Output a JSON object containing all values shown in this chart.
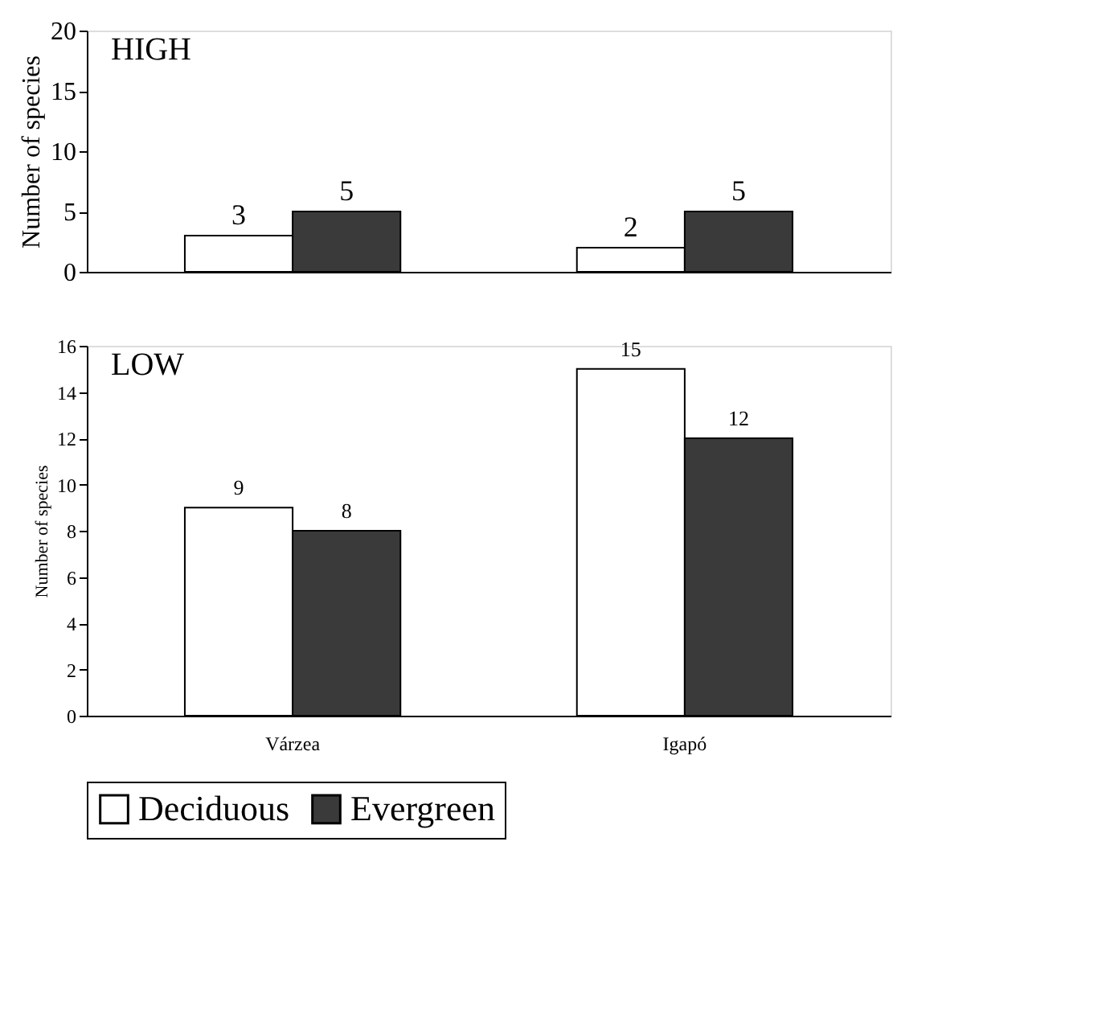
{
  "chart_data": [
    {
      "type": "bar",
      "categories": [
        null,
        null
      ],
      "ylabel": "Number of species",
      "annotations": [
        "HIGH"
      ],
      "ylim": [
        0,
        20
      ],
      "yticks": [
        0,
        5,
        10,
        15,
        20
      ],
      "tick_labels": "y",
      "data_labels": true,
      "grid": false,
      "series": [
        {
          "color": "#ffffff",
          "values": [
            3,
            2
          ]
        },
        {
          "color": "#3a3a3a",
          "values": [
            5,
            5
          ]
        }
      ]
    },
    {
      "type": "bar",
      "categories": [
        "Várzea",
        "Igapó"
      ],
      "ylabel": "Number of species",
      "annotations": [
        "LOW"
      ],
      "ylim": [
        0,
        16
      ],
      "yticks": [
        0,
        2,
        4,
        6,
        8,
        10,
        12,
        14,
        16
      ],
      "data_labels": true,
      "grid": false,
      "legend": "bottom",
      "series": [
        {
          "name": "Deciduous",
          "color": "#ffffff",
          "values": [
            9,
            15
          ]
        },
        {
          "name": "Evergreen",
          "color": "#3a3a3a",
          "values": [
            8,
            12
          ]
        }
      ]
    }
  ]
}
